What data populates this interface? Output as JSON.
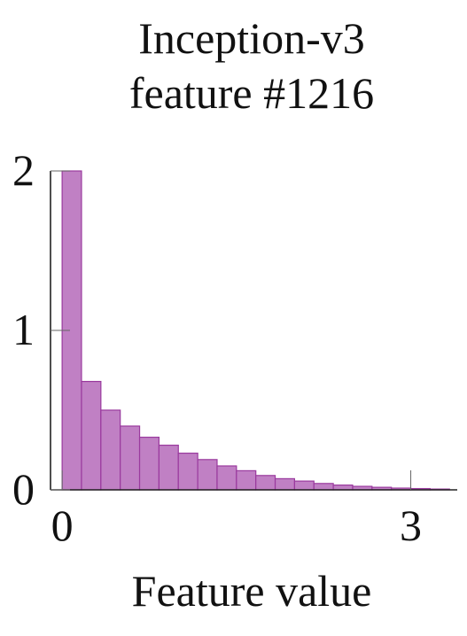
{
  "chart_data": {
    "type": "bar",
    "title": [
      "Inception-v3",
      "feature #1216"
    ],
    "xlabel": "Feature value",
    "ylabel": "",
    "xlim": [
      -0.1,
      3.4
    ],
    "ylim": [
      0,
      2
    ],
    "xticks": [
      {
        "value": 0,
        "label": "0"
      },
      {
        "value": 3,
        "label": "3"
      }
    ],
    "yticks": [
      {
        "value": 0,
        "label": "0"
      },
      {
        "value": 1,
        "label": "1"
      },
      {
        "value": 2,
        "label": "2"
      }
    ],
    "bin_width": 0.1667,
    "bins": [
      {
        "start": 0.0,
        "value": 2.0
      },
      {
        "start": 0.1667,
        "value": 0.68
      },
      {
        "start": 0.3333,
        "value": 0.5
      },
      {
        "start": 0.5,
        "value": 0.4
      },
      {
        "start": 0.6667,
        "value": 0.33
      },
      {
        "start": 0.8333,
        "value": 0.28
      },
      {
        "start": 1.0,
        "value": 0.23
      },
      {
        "start": 1.1667,
        "value": 0.19
      },
      {
        "start": 1.3333,
        "value": 0.15
      },
      {
        "start": 1.5,
        "value": 0.12
      },
      {
        "start": 1.6667,
        "value": 0.09
      },
      {
        "start": 1.8333,
        "value": 0.07
      },
      {
        "start": 2.0,
        "value": 0.055
      },
      {
        "start": 2.1667,
        "value": 0.04
      },
      {
        "start": 2.3333,
        "value": 0.03
      },
      {
        "start": 2.5,
        "value": 0.022
      },
      {
        "start": 2.6667,
        "value": 0.016
      },
      {
        "start": 2.8333,
        "value": 0.011
      },
      {
        "start": 3.0,
        "value": 0.008
      },
      {
        "start": 3.1667,
        "value": 0.005
      }
    ],
    "bar_fill": "#c080c4",
    "bar_stroke": "#9a3a9e",
    "grid": false,
    "legend": "none"
  }
}
